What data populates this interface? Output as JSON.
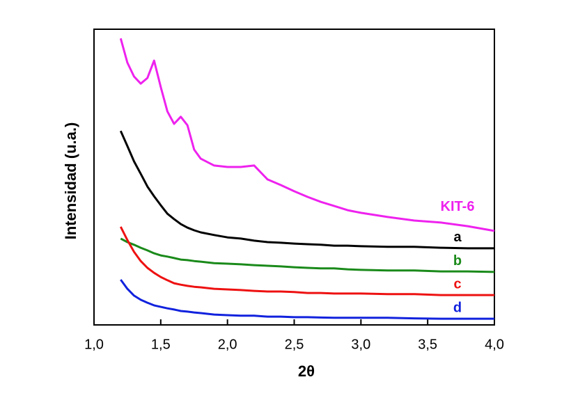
{
  "chart_data": {
    "type": "line",
    "xlabel": "2θ",
    "ylabel": "Intensidad (u.a.)",
    "x": [
      1.2,
      1.25,
      1.3,
      1.35,
      1.4,
      1.45,
      1.5,
      1.55,
      1.6,
      1.65,
      1.7,
      1.75,
      1.8,
      1.9,
      2.0,
      2.1,
      2.2,
      2.3,
      2.4,
      2.5,
      2.6,
      2.7,
      2.8,
      2.9,
      3.0,
      3.2,
      3.4,
      3.6,
      3.8,
      4.0
    ],
    "series": [
      {
        "name": "KIT-6",
        "color": "#ee22ee",
        "values": [
          96.9,
          88.7,
          84.0,
          81.6,
          83.5,
          89.4,
          80.5,
          72.2,
          68.0,
          70.4,
          67.5,
          59.3,
          56.2,
          53.9,
          53.4,
          53.4,
          53.9,
          49.2,
          47.3,
          45.2,
          43.3,
          41.6,
          40.2,
          38.8,
          37.9,
          36.5,
          35.3,
          34.6,
          33.4,
          31.8
        ]
      },
      {
        "name": "a",
        "color": "#000000",
        "values": [
          65.6,
          60.5,
          55.3,
          51.1,
          46.8,
          43.5,
          40.5,
          37.6,
          35.8,
          34.1,
          32.9,
          32.0,
          31.3,
          30.4,
          29.6,
          29.2,
          28.5,
          28.0,
          27.8,
          27.5,
          27.3,
          27.1,
          26.8,
          26.8,
          26.6,
          26.4,
          26.4,
          26.1,
          25.9,
          25.9
        ]
      },
      {
        "name": "b",
        "color": "#1a8a1a",
        "values": [
          29.2,
          28.0,
          27.1,
          26.1,
          25.2,
          24.2,
          23.5,
          23.1,
          22.6,
          22.1,
          21.9,
          21.6,
          21.4,
          20.9,
          20.7,
          20.5,
          20.2,
          20.0,
          19.8,
          19.5,
          19.3,
          19.1,
          19.1,
          18.8,
          18.6,
          18.4,
          18.4,
          18.1,
          18.1,
          17.9
        ]
      },
      {
        "name": "c",
        "color": "#ee1111",
        "values": [
          33.2,
          28.7,
          24.7,
          21.6,
          19.3,
          17.6,
          16.2,
          15.1,
          14.1,
          13.6,
          13.2,
          12.9,
          12.7,
          12.2,
          12.0,
          11.8,
          11.5,
          11.3,
          11.3,
          11.1,
          10.8,
          10.8,
          10.6,
          10.6,
          10.6,
          10.4,
          10.4,
          10.1,
          10.1,
          10.1
        ]
      },
      {
        "name": "d",
        "color": "#1122dd",
        "values": [
          15.3,
          12.2,
          9.9,
          8.5,
          7.5,
          6.6,
          6.1,
          5.6,
          5.2,
          4.7,
          4.5,
          4.2,
          4.0,
          3.5,
          3.3,
          3.1,
          3.1,
          2.8,
          2.8,
          2.6,
          2.6,
          2.5,
          2.4,
          2.4,
          2.4,
          2.4,
          2.2,
          2.1,
          2.1,
          2.1
        ]
      }
    ],
    "xlim": [
      1.0,
      4.0
    ],
    "xticks": [
      {
        "value": 1.0,
        "label": "1,0"
      },
      {
        "value": 1.5,
        "label": "1,5"
      },
      {
        "value": 2.0,
        "label": "2,0"
      },
      {
        "value": 2.5,
        "label": "2,5"
      },
      {
        "value": 3.0,
        "label": "3,0"
      },
      {
        "value": 3.5,
        "label": "3,5"
      },
      {
        "value": 4.0,
        "label": "4,0"
      }
    ],
    "ylim": [
      0,
      100
    ]
  }
}
